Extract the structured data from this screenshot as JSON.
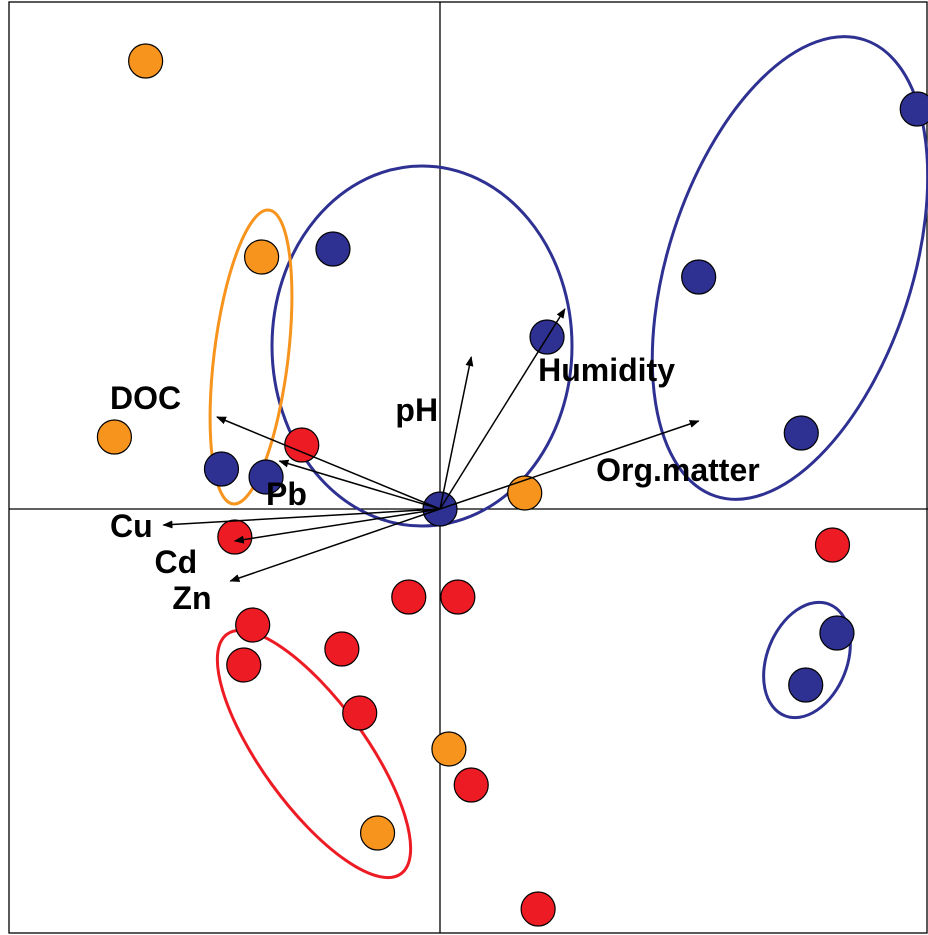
{
  "colors": {
    "red_group": "#ED1C24",
    "orange_group": "#F7941D",
    "blue_group": "#2E3192",
    "ellipse_blue": "#2E3192",
    "ellipse_orange": "#F7941D",
    "ellipse_red": "#ED1C24",
    "axis": "#000000"
  },
  "chart_data": {
    "type": "scatter",
    "title": "",
    "xlabel": "",
    "ylabel": "",
    "xlim": [
      -1.0,
      1.1
    ],
    "ylim": [
      -1.05,
      1.2
    ],
    "grid": false,
    "series": [
      {
        "group": "red",
        "points": [
          [
            -0.31,
            0.16
          ],
          [
            -0.46,
            -0.07
          ],
          [
            -0.42,
            -0.29
          ],
          [
            -0.44,
            -0.39
          ],
          [
            -0.22,
            -0.35
          ],
          [
            -0.18,
            -0.51
          ],
          [
            -0.07,
            -0.22
          ],
          [
            0.04,
            -0.22
          ],
          [
            0.07,
            -0.69
          ],
          [
            0.22,
            -1.0
          ],
          [
            0.88,
            -0.09
          ]
        ]
      },
      {
        "group": "orange",
        "points": [
          [
            -0.66,
            1.12
          ],
          [
            -0.4,
            0.63
          ],
          [
            -0.73,
            0.18
          ],
          [
            0.19,
            0.04
          ],
          [
            0.02,
            -0.6
          ],
          [
            -0.14,
            -0.81
          ]
        ]
      },
      {
        "group": "blue",
        "points": [
          [
            -0.24,
            0.65
          ],
          [
            0.24,
            0.43
          ],
          [
            0.58,
            0.58
          ],
          [
            1.07,
            1.0
          ],
          [
            0.81,
            0.19
          ],
          [
            -0.49,
            0.1
          ],
          [
            -0.39,
            0.08
          ],
          [
            0.0,
            0.0
          ],
          [
            0.89,
            -0.31
          ],
          [
            0.82,
            -0.44
          ]
        ]
      }
    ],
    "vectors": [
      {
        "label": "DOC",
        "x": -0.5,
        "y": 0.23
      },
      {
        "label": "Pb",
        "x": -0.36,
        "y": 0.12
      },
      {
        "label": "Cu",
        "x": -0.62,
        "y": -0.04
      },
      {
        "label": "Cd",
        "x": -0.46,
        "y": -0.08
      },
      {
        "label": "Zn",
        "x": -0.47,
        "y": -0.18
      },
      {
        "label": "pH",
        "x": 0.07,
        "y": 0.38
      },
      {
        "label": "Humidity",
        "x": 0.28,
        "y": 0.5
      },
      {
        "label": "Org.matter",
        "x": 0.58,
        "y": 0.22
      }
    ]
  }
}
